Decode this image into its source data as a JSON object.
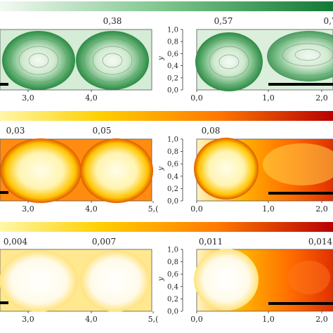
{
  "chart_data": [
    {
      "type": "heatmap",
      "colormap": [
        "#ffffff",
        "#0b7a32"
      ],
      "colorbar_ticks": [
        "0,38",
        "0,57",
        "0,7"
      ],
      "panels": [
        {
          "xticks": [
            "3,0",
            "4,0"
          ],
          "yticks": []
        },
        {
          "xticks": [
            "0,0",
            "1,0",
            "2,0"
          ],
          "yticks": [
            "0,0",
            "0,2",
            "0,4",
            "0,6",
            "0,8",
            "1,0"
          ],
          "ylabel": "y"
        }
      ]
    },
    {
      "type": "heatmap",
      "colormap": [
        "#fffbe0",
        "#ffd400",
        "#ff8a00",
        "#b30000"
      ],
      "colorbar_ticks": [
        "0,03",
        "0,05",
        "0,08"
      ],
      "panels": [
        {
          "xticks": [
            "3,0",
            "4,0",
            "5,("
          ],
          "yticks": []
        },
        {
          "xticks": [
            "0,0",
            "1,0",
            "2,0"
          ],
          "yticks": [
            "0,0",
            "0,2",
            "0,4",
            "0,6",
            "0,8",
            "1,0"
          ],
          "ylabel": "y"
        }
      ]
    },
    {
      "type": "heatmap",
      "colormap": [
        "#fffbe0",
        "#ffd400",
        "#ff8a00",
        "#b30000"
      ],
      "colorbar_ticks": [
        "0,004",
        "0,007",
        "0,011",
        "0,014"
      ],
      "panels": [
        {
          "xticks": [
            "3,0",
            "4,0",
            "5,("
          ],
          "yticks": []
        },
        {
          "xticks": [
            "0,0",
            "1,0",
            "2,0"
          ],
          "yticks": [
            "0,0",
            "0,2",
            "0,4",
            "0,6",
            "0,8",
            "1,0"
          ],
          "ylabel": "y"
        }
      ]
    }
  ]
}
